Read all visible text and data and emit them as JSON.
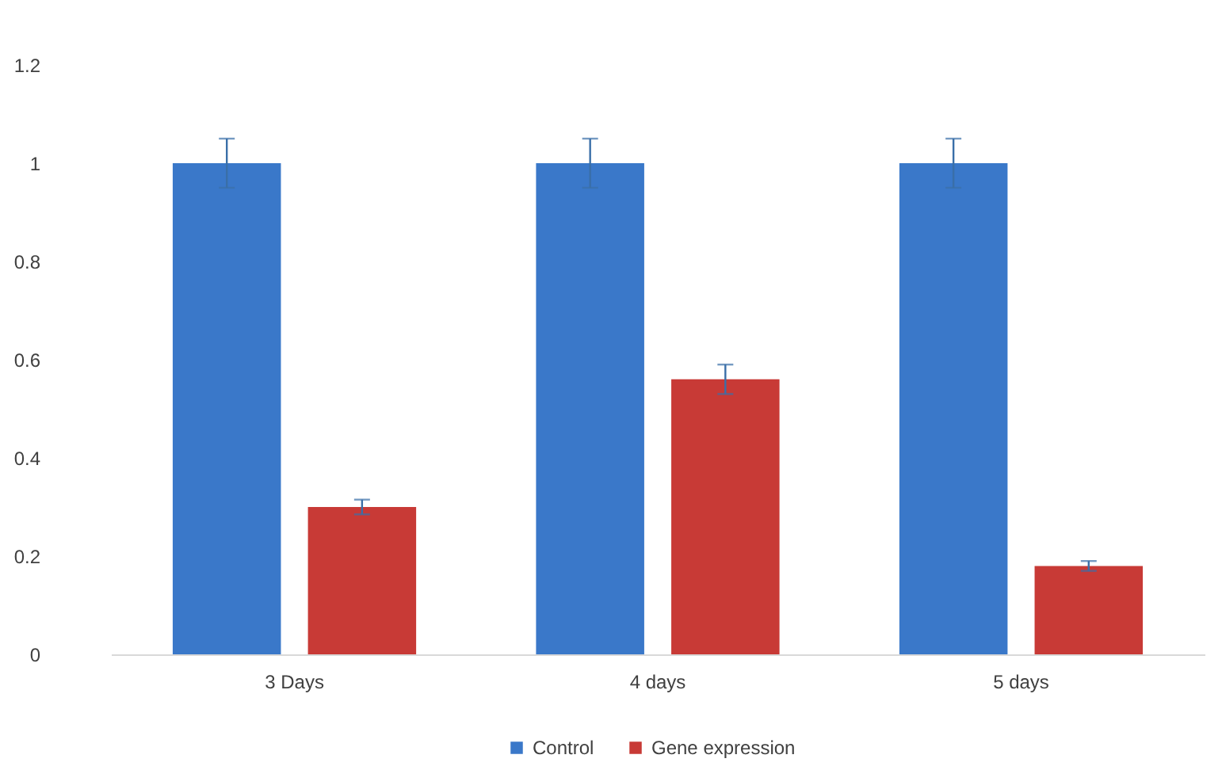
{
  "chart_data": {
    "type": "bar",
    "categories": [
      "3 Days",
      "4 days",
      "5 days"
    ],
    "series": [
      {
        "name": "Control",
        "color": "#3a78c9",
        "values": [
          1,
          1,
          1
        ],
        "errors": [
          0.05,
          0.05,
          0.05
        ]
      },
      {
        "name": "Gene expression",
        "color": "#c83a36",
        "values": [
          0.3,
          0.56,
          0.18
        ],
        "errors": [
          0.015,
          0.03,
          0.01
        ]
      }
    ],
    "ylim": [
      0,
      1.2
    ],
    "yticks": [
      0,
      0.2,
      0.4,
      0.6,
      0.8,
      1,
      1.2
    ],
    "grid": false,
    "legend": "bottom"
  }
}
